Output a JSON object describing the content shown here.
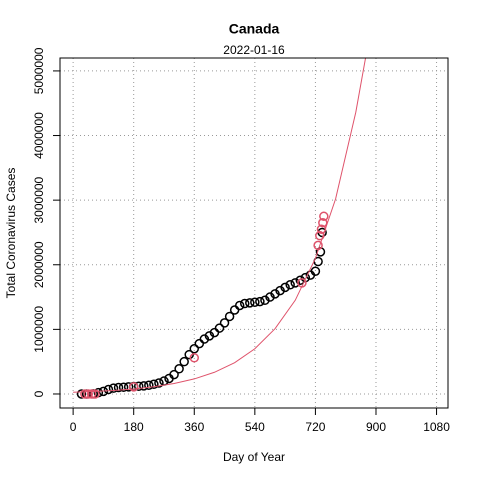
{
  "chart_data": {
    "type": "scatter",
    "title": "Canada",
    "subtitle": "2022-01-16",
    "x_label": "Day of Year",
    "y_label": "Total Coronavirus Cases",
    "xlim": [
      -39,
      1114
    ],
    "ylim": [
      -217000,
      5200000
    ],
    "xticks": [
      0,
      180,
      360,
      540,
      720,
      900,
      1080
    ],
    "yticks": [
      0,
      1000000,
      2000000,
      3000000,
      4000000,
      5000000
    ],
    "grid": true,
    "series": [
      {
        "color": "#000000",
        "marker": "circle",
        "x": [
          25,
          40,
          60,
          75,
          90,
          105,
          120,
          135,
          150,
          165,
          180,
          195,
          210,
          225,
          240,
          255,
          270,
          285,
          300,
          315,
          330,
          345,
          360,
          375,
          390,
          405,
          420,
          435,
          450,
          465,
          480,
          495,
          510,
          525,
          540,
          555,
          570,
          585,
          600,
          615,
          630,
          645,
          660,
          675,
          690,
          705,
          720,
          728,
          735,
          740
        ],
        "values": [
          0,
          0,
          1000,
          20000,
          40000,
          70000,
          90000,
          100000,
          105000,
          110000,
          115000,
          120000,
          125000,
          135000,
          150000,
          170000,
          200000,
          240000,
          300000,
          390000,
          500000,
          610000,
          700000,
          780000,
          850000,
          900000,
          950000,
          1020000,
          1100000,
          1200000,
          1300000,
          1370000,
          1400000,
          1410000,
          1420000,
          1430000,
          1450000,
          1500000,
          1550000,
          1600000,
          1650000,
          1690000,
          1720000,
          1760000,
          1800000,
          1840000,
          1900000,
          2050000,
          2200000,
          2500000
        ]
      },
      {
        "color": "#DF536B",
        "marker": "circle",
        "x": [
          35,
          45,
          55,
          65,
          180,
          360,
          680,
          728,
          733,
          738,
          742,
          745
        ],
        "values": [
          0,
          0,
          0,
          0,
          110000,
          560000,
          1720000,
          2300000,
          2450000,
          2550000,
          2650000,
          2750000
        ]
      },
      {
        "color": "#DF536B",
        "marker": "line",
        "x": [
          0,
          60,
          120,
          180,
          240,
          300,
          360,
          420,
          480,
          540,
          600,
          660,
          720,
          780,
          840,
          870
        ],
        "values": [
          26000,
          37500,
          54000,
          78000,
          112000,
          162000,
          233000,
          336000,
          485000,
          700000,
          1010000,
          1450000,
          2100000,
          3020000,
          4360000,
          5230000
        ]
      }
    ]
  }
}
